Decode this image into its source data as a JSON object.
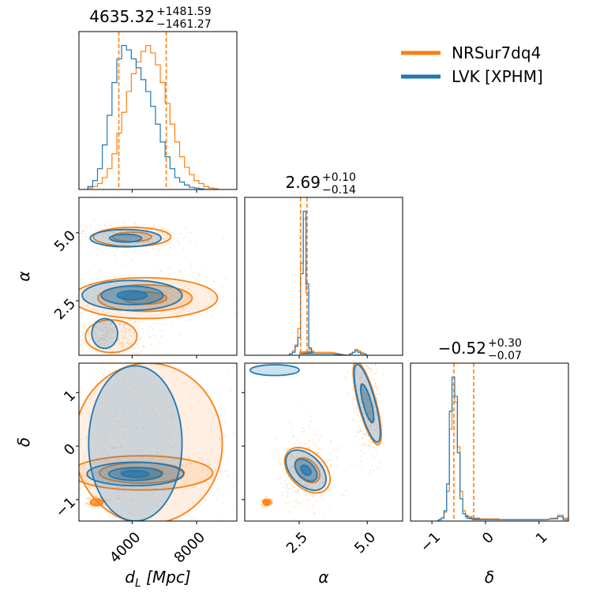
{
  "chart_data": {
    "type": "corner",
    "colors": {
      "NRSur7dq4": "#ff7f0e",
      "LVK [XPHM]": "#1f77b4"
    },
    "legend": {
      "placement": "top-right",
      "entries": [
        {
          "name": "NRSur7dq4",
          "color": "#ff7f0e"
        },
        {
          "name": "LVK [XPHM]",
          "color": "#1f77b4"
        }
      ]
    },
    "parameters": [
      {
        "key": "dL",
        "label_main": "d",
        "label_sub": "L",
        "label_rest": " [Mpc]",
        "range": [
          700,
          10500
        ],
        "ticks": [
          {
            "v": 4000,
            "t": "4000"
          },
          {
            "v": 8000,
            "t": "8000"
          }
        ]
      },
      {
        "key": "alpha",
        "label": "α",
        "range": [
          0.5,
          6.3
        ],
        "ticks": [
          {
            "v": 2.5,
            "t": "2.5"
          },
          {
            "v": 5.0,
            "t": "5.0"
          }
        ]
      },
      {
        "key": "delta",
        "label": "δ",
        "range": [
          -1.4,
          1.55
        ],
        "ticks": [
          {
            "v": -1,
            "t": "−1"
          },
          {
            "v": 0,
            "t": "0"
          },
          {
            "v": 1,
            "t": "1"
          }
        ]
      }
    ],
    "titles": [
      {
        "median": "4635.32",
        "plus": "+1481.59",
        "minus": "−1461.27"
      },
      {
        "median": "2.69",
        "plus": "+0.10",
        "minus": "−0.14"
      },
      {
        "median": "−0.52",
        "plus": "+0.30",
        "minus": "−0.07"
      }
    ],
    "quantile_lines": {
      "dL": [
        3174,
        6117
      ],
      "alpha": [
        2.55,
        2.79
      ],
      "delta": [
        -0.59,
        -0.22
      ]
    },
    "marginals": {
      "dL": {
        "x": [
          1400,
          1700,
          2000,
          2300,
          2600,
          2900,
          3200,
          3500,
          3800,
          4100,
          4400,
          4700,
          5000,
          5300,
          5600,
          5900,
          6200,
          6500,
          6800,
          7100,
          7400,
          7700,
          8000,
          8300,
          8600,
          8900,
          9200
        ],
        "NRSur7dq4": [
          0.01,
          0.02,
          0.04,
          0.08,
          0.14,
          0.24,
          0.38,
          0.52,
          0.66,
          0.78,
          0.86,
          0.93,
          0.97,
          0.92,
          0.84,
          0.72,
          0.58,
          0.44,
          0.32,
          0.22,
          0.15,
          0.1,
          0.06,
          0.04,
          0.02,
          0.01,
          0.005
        ],
        "LVK [XPHM]": [
          0.02,
          0.06,
          0.14,
          0.3,
          0.5,
          0.72,
          0.88,
          0.97,
          0.94,
          0.88,
          0.82,
          0.74,
          0.66,
          0.56,
          0.44,
          0.32,
          0.22,
          0.14,
          0.08,
          0.05,
          0.03,
          0.015,
          0.01,
          0.005,
          0.0,
          0.0,
          0.0
        ]
      },
      "alpha": {
        "x": [
          2.1,
          2.2,
          2.3,
          2.4,
          2.5,
          2.6,
          2.7,
          2.8,
          2.9,
          3.0,
          3.1,
          4.3,
          4.4,
          4.5,
          4.6,
          4.7,
          4.8,
          4.9,
          5.0
        ],
        "NRSur7dq4": [
          0.0,
          0.01,
          0.03,
          0.07,
          0.18,
          0.62,
          0.92,
          0.42,
          0.04,
          0.03,
          0.02,
          0.0,
          0.01,
          0.02,
          0.04,
          0.03,
          0.02,
          0.01,
          0.0
        ],
        "LVK [XPHM]": [
          0.0,
          0.01,
          0.02,
          0.06,
          0.12,
          0.55,
          0.97,
          0.48,
          0.05,
          0.02,
          0.01,
          0.0,
          0.01,
          0.02,
          0.03,
          0.02,
          0.01,
          0.01,
          0.0
        ]
      },
      "delta": {
        "x": [
          -0.9,
          -0.85,
          -0.8,
          -0.75,
          -0.7,
          -0.65,
          -0.6,
          -0.55,
          -0.5,
          -0.45,
          -0.4,
          -0.35,
          -0.3,
          -0.2,
          0.0,
          0.5,
          1.0,
          1.3,
          1.4,
          1.5
        ],
        "NRSur7dq4": [
          0.0,
          0.01,
          0.02,
          0.06,
          0.2,
          0.62,
          0.92,
          0.8,
          0.5,
          0.2,
          0.07,
          0.04,
          0.03,
          0.02,
          0.015,
          0.01,
          0.01,
          0.02,
          0.04,
          0.02
        ],
        "LVK [XPHM]": [
          0.0,
          0.01,
          0.02,
          0.07,
          0.25,
          0.74,
          0.97,
          0.84,
          0.46,
          0.15,
          0.05,
          0.03,
          0.02,
          0.015,
          0.01,
          0.01,
          0.01,
          0.015,
          0.03,
          0.01
        ]
      }
    },
    "joint_contours": [
      {
        "pair": [
          "dL",
          "alpha"
        ],
        "series": "LVK [XPHM]",
        "blobs": [
          {
            "cx": 4000,
            "cy": 2.7,
            "rx": 3100,
            "ry": 0.55,
            "levels": [
              1.0,
              0.62,
              0.3
            ]
          },
          {
            "cx": 3600,
            "cy": 4.8,
            "rx": 2200,
            "ry": 0.32,
            "levels": [
              1.0,
              0.45
            ]
          },
          {
            "cx": 2300,
            "cy": 1.3,
            "rx": 800,
            "ry": 0.55,
            "levels": [
              1.0
            ]
          }
        ]
      },
      {
        "pair": [
          "dL",
          "alpha"
        ],
        "series": "NRSur7dq4",
        "blobs": [
          {
            "cx": 4800,
            "cy": 2.6,
            "rx": 4500,
            "ry": 0.75,
            "levels": [
              1.0,
              0.65,
              0.3
            ]
          },
          {
            "cx": 4000,
            "cy": 4.85,
            "rx": 2400,
            "ry": 0.35,
            "levels": [
              1.0,
              0.5
            ]
          },
          {
            "cx": 2700,
            "cy": 1.2,
            "rx": 1600,
            "ry": 0.6,
            "levels": [
              1.0
            ]
          }
        ]
      },
      {
        "pair": [
          "dL",
          "delta"
        ],
        "series": "LVK [XPHM]",
        "blobs": [
          {
            "cx": 4200,
            "cy": 0.05,
            "rx": 2900,
            "ry": 1.45,
            "levels": [
              1.0
            ]
          },
          {
            "cx": 4200,
            "cy": -0.52,
            "rx": 3000,
            "ry": 0.22,
            "levels": [
              1.0,
              0.55,
              0.28
            ]
          }
        ]
      },
      {
        "pair": [
          "dL",
          "delta"
        ],
        "series": "NRSur7dq4",
        "blobs": [
          {
            "cx": 5000,
            "cy": 0.05,
            "rx": 4600,
            "ry": 1.5,
            "levels": [
              1.0
            ]
          },
          {
            "cx": 4600,
            "cy": -0.5,
            "rx": 4400,
            "ry": 0.32,
            "levels": [
              1.0,
              0.6,
              0.3
            ]
          },
          {
            "cx": 1800,
            "cy": -1.05,
            "rx": 380,
            "ry": 0.06,
            "levels": [
              1.0
            ]
          }
        ]
      },
      {
        "pair": [
          "alpha",
          "delta"
        ],
        "series": "LVK [XPHM]",
        "blobs": [
          {
            "cx": 2.75,
            "cy": -0.45,
            "rx": 0.55,
            "ry": 0.45,
            "levels": [
              1.0,
              0.55,
              0.25
            ],
            "rot": -45
          },
          {
            "cx": 5.0,
            "cy": 0.8,
            "rx": 0.3,
            "ry": 0.75,
            "levels": [
              1.0,
              0.5
            ],
            "rot": -15
          },
          {
            "cx": 1.6,
            "cy": 1.42,
            "rx": 0.9,
            "ry": 0.1,
            "levels": [
              1.0
            ]
          }
        ]
      },
      {
        "pair": [
          "alpha",
          "delta"
        ],
        "series": "NRSur7dq4",
        "blobs": [
          {
            "cx": 2.8,
            "cy": -0.45,
            "rx": 0.65,
            "ry": 0.5,
            "levels": [
              1.0,
              0.55
            ],
            "rot": -45
          },
          {
            "cx": 5.0,
            "cy": 0.8,
            "rx": 0.33,
            "ry": 0.8,
            "levels": [
              1.0,
              0.45
            ],
            "rot": -15
          },
          {
            "cx": 1.3,
            "cy": -1.05,
            "rx": 0.12,
            "ry": 0.05,
            "levels": [
              1.0
            ]
          }
        ]
      }
    ]
  }
}
